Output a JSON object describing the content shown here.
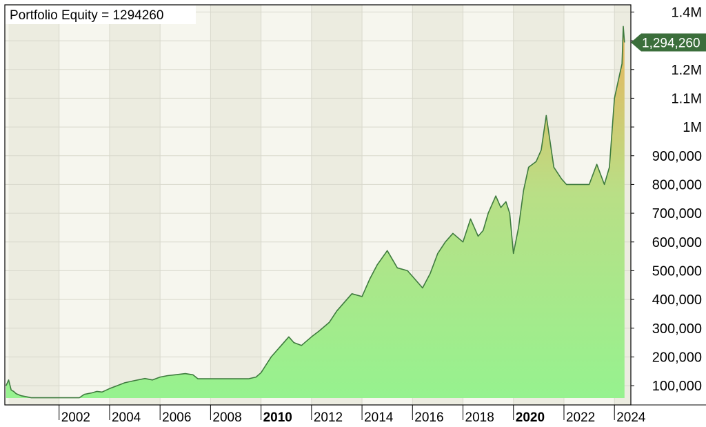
{
  "chart_data": {
    "type": "area",
    "title": "Portfolio Equity = 1294260",
    "xlabel": "",
    "ylabel": "",
    "xlim": [
      1999.85,
      2024.65
    ],
    "ylim": [
      33000,
      1425000
    ],
    "grid": true,
    "last_value_label": "1,294,260",
    "y_ticks": [
      {
        "value": 1400000,
        "label": "1.4M"
      },
      {
        "value": 1300000,
        "label": ""
      },
      {
        "value": 1200000,
        "label": "1.2M"
      },
      {
        "value": 1100000,
        "label": "1.1M"
      },
      {
        "value": 1000000,
        "label": "1M"
      },
      {
        "value": 900000,
        "label": "900,000"
      },
      {
        "value": 800000,
        "label": "800,000"
      },
      {
        "value": 700000,
        "label": "700,000"
      },
      {
        "value": 600000,
        "label": "600,000"
      },
      {
        "value": 500000,
        "label": "500,000"
      },
      {
        "value": 400000,
        "label": "400,000"
      },
      {
        "value": 300000,
        "label": "300,000"
      },
      {
        "value": 200000,
        "label": "200,000"
      },
      {
        "value": 100000,
        "label": "100,000"
      }
    ],
    "x_ticks": [
      {
        "value": 2002,
        "label": "2002",
        "bold": false
      },
      {
        "value": 2004,
        "label": "2004",
        "bold": false
      },
      {
        "value": 2006,
        "label": "2006",
        "bold": false
      },
      {
        "value": 2008,
        "label": "2008",
        "bold": false
      },
      {
        "value": 2010,
        "label": "2010",
        "bold": true
      },
      {
        "value": 2012,
        "label": "2012",
        "bold": false
      },
      {
        "value": 2014,
        "label": "2014",
        "bold": false
      },
      {
        "value": 2016,
        "label": "2016",
        "bold": false
      },
      {
        "value": 2018,
        "label": "2018",
        "bold": false
      },
      {
        "value": 2020,
        "label": "2020",
        "bold": true
      },
      {
        "value": 2022,
        "label": "2022",
        "bold": false
      },
      {
        "value": 2024,
        "label": "2024",
        "bold": false
      }
    ],
    "series": [
      {
        "x": [
          1999.9,
          2000.0,
          2000.1,
          2000.2,
          2000.3,
          2000.5,
          2000.8,
          2000.9,
          2001.0,
          2002.0,
          2002.8,
          2003.0,
          2003.3,
          2003.5,
          2003.7,
          2004.0,
          2004.3,
          2004.6,
          2005.0,
          2005.4,
          2005.7,
          2006.0,
          2006.3,
          2006.6,
          2007.0,
          2007.3,
          2007.5,
          2008.0,
          2008.5,
          2009.0,
          2009.5,
          2009.8,
          2010.0,
          2010.4,
          2010.8,
          2011.1,
          2011.3,
          2011.6,
          2012.0,
          2012.3,
          2012.7,
          2013.0,
          2013.3,
          2013.6,
          2014.0,
          2014.3,
          2014.6,
          2015.0,
          2015.2,
          2015.4,
          2015.8,
          2016.1,
          2016.4,
          2016.7,
          2017.0,
          2017.3,
          2017.6,
          2018.0,
          2018.3,
          2018.6,
          2018.8,
          2019.0,
          2019.3,
          2019.5,
          2019.7,
          2019.85,
          2020.0,
          2020.2,
          2020.4,
          2020.6,
          2020.9,
          2021.1,
          2021.3,
          2021.6,
          2021.9,
          2022.1,
          2022.3,
          2022.6,
          2022.9,
          2023.0,
          2023.3,
          2023.6,
          2023.8,
          2024.0,
          2024.2,
          2024.3,
          2024.35,
          2024.4
        ],
        "values": [
          100000,
          120000,
          85000,
          80000,
          72000,
          65000,
          60000,
          58000,
          58000,
          58000,
          58000,
          70000,
          75000,
          80000,
          78000,
          90000,
          100000,
          110000,
          118000,
          125000,
          120000,
          130000,
          135000,
          138000,
          142000,
          138000,
          124000,
          124000,
          124000,
          124000,
          124000,
          130000,
          145000,
          200000,
          240000,
          270000,
          250000,
          240000,
          270000,
          290000,
          320000,
          360000,
          390000,
          420000,
          410000,
          470000,
          520000,
          570000,
          540000,
          510000,
          500000,
          470000,
          440000,
          490000,
          560000,
          600000,
          630000,
          600000,
          680000,
          620000,
          640000,
          700000,
          760000,
          720000,
          740000,
          700000,
          560000,
          650000,
          780000,
          860000,
          880000,
          920000,
          1040000,
          860000,
          820000,
          800000,
          800000,
          800000,
          800000,
          800000,
          870000,
          800000,
          860000,
          1100000,
          1180000,
          1220000,
          1350000,
          1294260
        ]
      }
    ],
    "colors": {
      "line": "#3e7b3e",
      "fill_top": "#e9b35c",
      "fill_mid": "#b9df86",
      "fill_bottom": "#96f28f",
      "band_light": "#f6f6ee",
      "band_dark": "#ecece0",
      "grid": "#d8d8cc",
      "callout": "#3b6e3b"
    }
  }
}
